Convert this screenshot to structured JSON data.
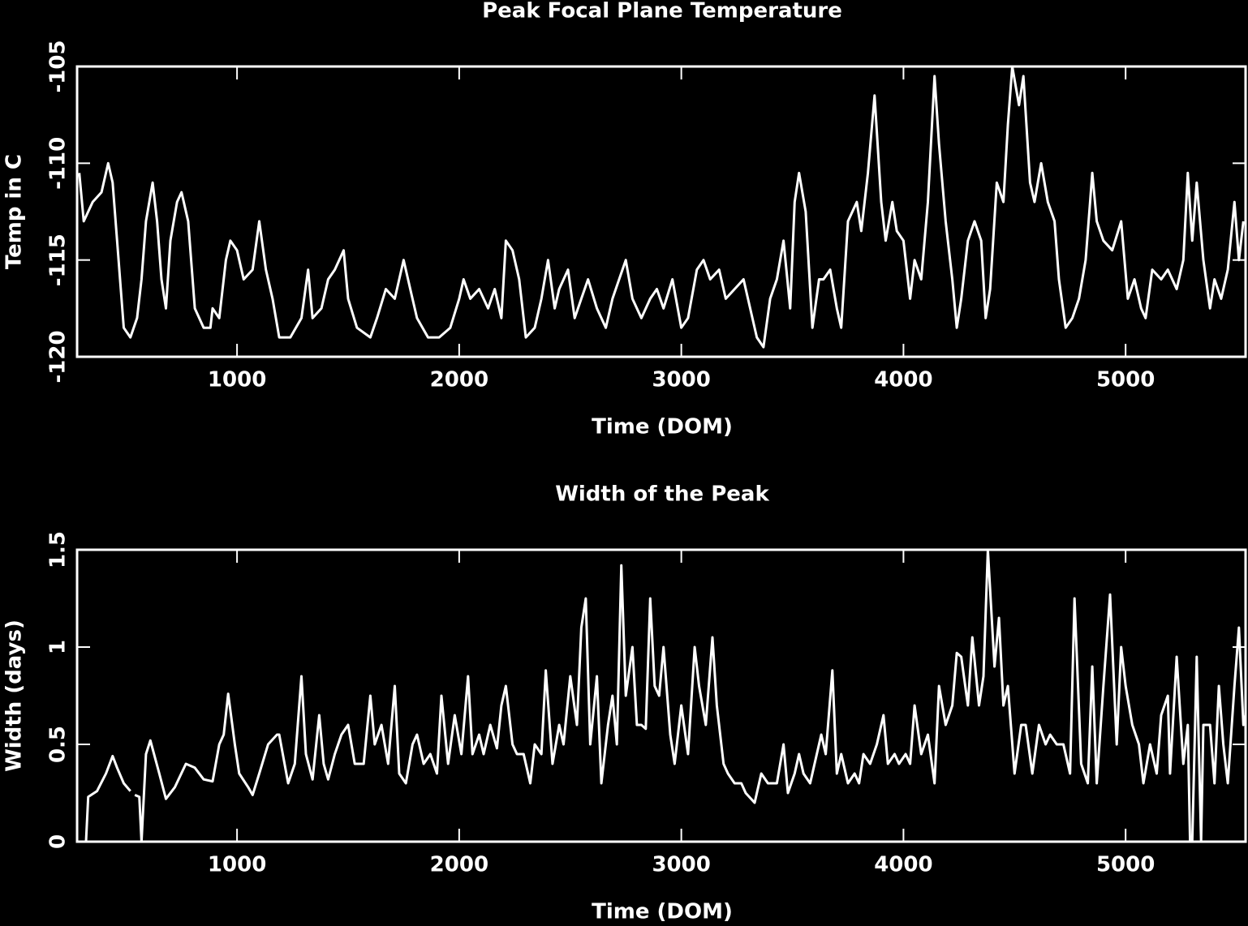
{
  "chart_data": [
    {
      "type": "line",
      "title": "Peak Focal Plane Temperature",
      "xlabel": "Time (DOM)",
      "ylabel": "Temp in C",
      "color": "#ffffff",
      "xlim": [
        280,
        5540
      ],
      "ylim": [
        -120,
        -105
      ],
      "xticks": [
        1000,
        2000,
        3000,
        4000,
        5000
      ],
      "yticks": [
        -120,
        -115,
        -110,
        -105
      ],
      "x": [
        290,
        310,
        350,
        390,
        420,
        440,
        460,
        490,
        520,
        550,
        570,
        590,
        620,
        640,
        660,
        680,
        700,
        730,
        750,
        780,
        810,
        850,
        880,
        890,
        920,
        950,
        970,
        1000,
        1030,
        1070,
        1100,
        1130,
        1160,
        1190,
        1240,
        1290,
        1320,
        1340,
        1380,
        1410,
        1440,
        1480,
        1500,
        1540,
        1600,
        1630,
        1670,
        1710,
        1750,
        1780,
        1810,
        1860,
        1910,
        1960,
        2000,
        2020,
        2050,
        2090,
        2130,
        2160,
        2190,
        2210,
        2240,
        2270,
        2300,
        2340,
        2370,
        2400,
        2430,
        2450,
        2490,
        2520,
        2550,
        2580,
        2620,
        2660,
        2690,
        2720,
        2750,
        2780,
        2820,
        2860,
        2890,
        2920,
        2960,
        3000,
        3030,
        3070,
        3100,
        3130,
        3170,
        3200,
        3240,
        3280,
        3310,
        3340,
        3370,
        3400,
        3430,
        3460,
        3490,
        3510,
        3530,
        3560,
        3590,
        3620,
        3640,
        3670,
        3700,
        3720,
        3750,
        3790,
        3810,
        3840,
        3870,
        3900,
        3920,
        3950,
        3970,
        4000,
        4030,
        4050,
        4080,
        4110,
        4140,
        4160,
        4190,
        4220,
        4240,
        4260,
        4290,
        4320,
        4350,
        4370,
        4390,
        4420,
        4450,
        4470,
        4490,
        4520,
        4540,
        4570,
        4590,
        4620,
        4650,
        4680,
        4700,
        4730,
        4760,
        4790,
        4820,
        4840,
        4850,
        4870,
        4900,
        4940,
        4980,
        5010,
        5040,
        5070,
        5090,
        5120,
        5160,
        5190,
        5230,
        5260,
        5280,
        5300,
        5320,
        5350,
        5380,
        5400,
        5430,
        5460,
        5490,
        5510,
        5530
      ],
      "values": [
        -110.5,
        -113,
        -112,
        -111.5,
        -110,
        -111,
        -114,
        -118.5,
        -119,
        -118,
        -116,
        -113,
        -111,
        -113,
        -116,
        -117.5,
        -114,
        -112,
        -111.5,
        -113,
        -117.5,
        -118.5,
        -118.5,
        -117.5,
        -118,
        -115,
        -114,
        -114.5,
        -116,
        -115.5,
        -113,
        -115.5,
        -117,
        -119,
        -119,
        -118,
        -115.5,
        -118,
        -117.5,
        -116,
        -115.5,
        -114.5,
        -117,
        -118.5,
        -119,
        -118,
        -116.5,
        -117,
        -115,
        -116.5,
        -118,
        -119,
        -119,
        -118.5,
        -117,
        -116,
        -117,
        -116.5,
        -117.5,
        -116.5,
        -118,
        -114,
        -114.5,
        -116,
        -119,
        -118.5,
        -117,
        -115,
        -117.5,
        -116.5,
        -115.5,
        -118,
        -117,
        -116,
        -117.5,
        -118.5,
        -117,
        -116,
        -115,
        -117,
        -118,
        -117,
        -116.5,
        -117.5,
        -116,
        -118.5,
        -118,
        -115.5,
        -115,
        -116,
        -115.5,
        -117,
        -116.5,
        -116,
        -117.5,
        -119,
        -119.5,
        -117,
        -116,
        -114,
        -117.5,
        -112,
        -110.5,
        -112.5,
        -118.5,
        -116,
        -116,
        -115.5,
        -117.5,
        -118.5,
        -113,
        -112,
        -113.5,
        -110.5,
        -106.5,
        -112,
        -114,
        -112,
        -113.5,
        -114,
        -117,
        -115,
        -116,
        -112,
        -105.5,
        -109,
        -113,
        -116,
        -118.5,
        -117,
        -114,
        -113,
        -114,
        -118,
        -116.5,
        -111,
        -112,
        -108,
        -105,
        -107,
        -105.5,
        -111,
        -112,
        -110,
        -112,
        -113,
        -116,
        -118.5,
        -118,
        -117,
        -115,
        -112,
        -110.5,
        -113,
        -114,
        -114.5,
        -113,
        -117,
        -116,
        -117.5,
        -118,
        -115.5,
        -116,
        -115.5,
        -116.5,
        -115,
        -110.5,
        -114,
        -111,
        -115,
        -117.5,
        -116,
        -117,
        -115.5,
        -112,
        -115,
        -113
      ]
    },
    {
      "type": "line",
      "title": "Width of the Peak",
      "xlabel": "Time (DOM)",
      "ylabel": "Width (days)",
      "color": "#ffffff",
      "xlim": [
        280,
        5540
      ],
      "ylim": [
        0,
        1.5
      ],
      "xticks": [
        1000,
        2000,
        3000,
        4000,
        5000
      ],
      "yticks": [
        0,
        0.5,
        1,
        1.5
      ],
      "x": [
        320,
        330,
        370,
        410,
        440,
        460,
        490,
        520,
        530,
        540,
        560,
        570,
        590,
        610,
        650,
        680,
        720,
        770,
        810,
        850,
        890,
        920,
        940,
        960,
        990,
        1010,
        1050,
        1070,
        1100,
        1140,
        1180,
        1190,
        1230,
        1260,
        1290,
        1310,
        1340,
        1370,
        1390,
        1410,
        1440,
        1470,
        1500,
        1530,
        1570,
        1600,
        1620,
        1650,
        1680,
        1710,
        1730,
        1760,
        1790,
        1810,
        1840,
        1870,
        1900,
        1920,
        1950,
        1980,
        2010,
        2040,
        2060,
        2090,
        2110,
        2140,
        2170,
        2190,
        2210,
        2240,
        2260,
        2290,
        2320,
        2340,
        2370,
        2390,
        2420,
        2450,
        2470,
        2500,
        2530,
        2550,
        2570,
        2590,
        2620,
        2640,
        2670,
        2690,
        2710,
        2730,
        2750,
        2780,
        2800,
        2820,
        2840,
        2860,
        2880,
        2900,
        2920,
        2950,
        2970,
        3000,
        3030,
        3060,
        3080,
        3110,
        3140,
        3160,
        3190,
        3210,
        3240,
        3270,
        3290,
        3330,
        3360,
        3390,
        3410,
        3430,
        3460,
        3480,
        3510,
        3530,
        3550,
        3580,
        3610,
        3630,
        3650,
        3680,
        3700,
        3720,
        3750,
        3780,
        3800,
        3820,
        3850,
        3880,
        3910,
        3930,
        3960,
        3980,
        4010,
        4030,
        4050,
        4080,
        4110,
        4140,
        4160,
        4190,
        4220,
        4240,
        4260,
        4290,
        4310,
        4340,
        4360,
        4380,
        4410,
        4430,
        4450,
        4470,
        4500,
        4530,
        4550,
        4580,
        4610,
        4640,
        4660,
        4690,
        4720,
        4750,
        4770,
        4800,
        4830,
        4850,
        4870,
        4900,
        4930,
        4960,
        4980,
        5000,
        5030,
        5060,
        5080,
        5110,
        5140,
        5160,
        5190,
        5200,
        5230,
        5260,
        5280,
        5290,
        5300,
        5320,
        5340,
        5350,
        5380,
        5400,
        5420,
        5440,
        5460,
        5490,
        5510,
        5530,
        5540
      ],
      "values": [
        0,
        0.23,
        0.26,
        0.35,
        0.44,
        0.38,
        0.3,
        0.26,
        null,
        0.24,
        0.23,
        0,
        0.45,
        0.52,
        0.35,
        0.22,
        0.28,
        0.4,
        0.38,
        0.32,
        0.31,
        0.5,
        0.55,
        0.76,
        0.5,
        0.35,
        0.28,
        0.24,
        0.35,
        0.5,
        0.55,
        0.55,
        0.3,
        0.4,
        0.85,
        0.45,
        0.32,
        0.65,
        0.4,
        0.32,
        0.45,
        0.55,
        0.6,
        0.4,
        0.4,
        0.75,
        0.5,
        0.6,
        0.4,
        0.8,
        0.35,
        0.3,
        0.5,
        0.55,
        0.4,
        0.45,
        0.35,
        0.75,
        0.4,
        0.65,
        0.45,
        0.85,
        0.45,
        0.55,
        0.45,
        0.6,
        0.48,
        0.7,
        0.8,
        0.5,
        0.45,
        0.45,
        0.3,
        0.5,
        0.45,
        0.88,
        0.4,
        0.6,
        0.5,
        0.85,
        0.6,
        1.1,
        1.25,
        0.5,
        0.85,
        0.3,
        0.6,
        0.75,
        0.5,
        1.42,
        0.75,
        1.0,
        0.6,
        0.6,
        0.58,
        1.25,
        0.8,
        0.75,
        1.0,
        0.55,
        0.4,
        0.7,
        0.45,
        1.0,
        0.8,
        0.6,
        1.05,
        0.7,
        0.4,
        0.35,
        0.3,
        0.3,
        0.25,
        0.2,
        0.35,
        0.3,
        0.3,
        0.3,
        0.5,
        0.25,
        0.35,
        0.45,
        0.35,
        0.3,
        0.45,
        0.55,
        0.45,
        0.88,
        0.35,
        0.45,
        0.3,
        0.35,
        0.3,
        0.45,
        0.4,
        0.5,
        0.65,
        0.4,
        0.45,
        0.4,
        0.45,
        0.4,
        0.7,
        0.45,
        0.55,
        0.3,
        0.8,
        0.6,
        0.7,
        0.97,
        0.95,
        0.7,
        1.05,
        0.7,
        0.85,
        1.5,
        0.9,
        1.15,
        0.7,
        0.8,
        0.35,
        0.6,
        0.6,
        0.35,
        0.6,
        0.5,
        0.55,
        0.5,
        0.5,
        0.35,
        1.25,
        0.4,
        0.3,
        0.9,
        0.3,
        0.8,
        1.27,
        0.5,
        1.0,
        0.8,
        0.6,
        0.5,
        0.3,
        0.5,
        0.35,
        0.65,
        0.75,
        0.35,
        0.95,
        0.4,
        0.6,
        0,
        0,
        0.95,
        0,
        0.6,
        0.6,
        0.3,
        0.8,
        0.5,
        0.3,
        0.8,
        1.1,
        0.6,
        0.65
      ]
    }
  ]
}
